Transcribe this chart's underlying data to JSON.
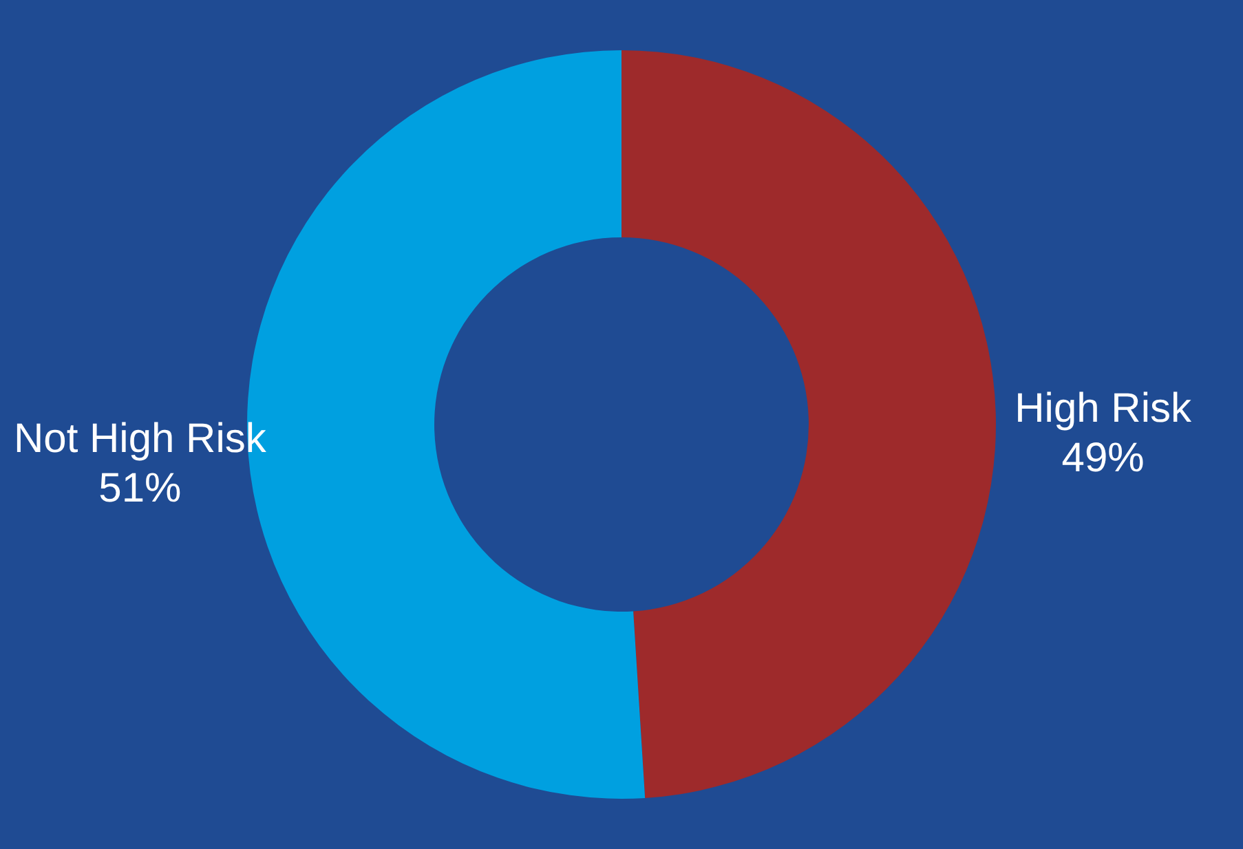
{
  "chart_data": {
    "type": "donut",
    "categories": [
      "High Risk",
      "Not High Risk"
    ],
    "values": [
      49,
      51
    ],
    "value_labels": [
      "49%",
      "51%"
    ],
    "colors": [
      "#9e2a2b",
      "#00a0e0"
    ]
  }
}
